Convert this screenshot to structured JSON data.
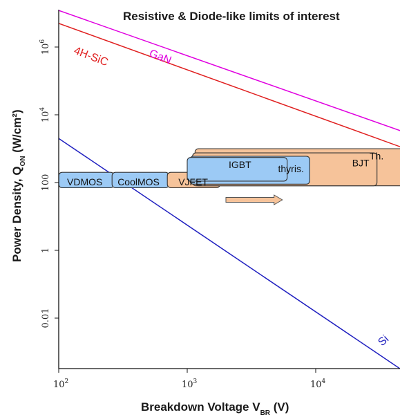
{
  "chart_data": {
    "type": "line",
    "title": "Resistive & Diode-like limits of interest",
    "xlabel": {
      "main": "Breakdown Voltage V",
      "sub": "BR",
      "unit": " (V)"
    },
    "ylabel": {
      "main": "Power Density, Q",
      "sub": "ON",
      "unit": " (W/cm²)"
    },
    "xscale": "log",
    "yscale": "log",
    "xlim": [
      100,
      50000
    ],
    "ylim": [
      3e-05,
      30000000
    ],
    "x_ticks": [
      {
        "base": "10",
        "exp": "2",
        "value": 100
      },
      {
        "base": "10",
        "exp": "3",
        "value": 1000
      },
      {
        "base": "10",
        "exp": "4",
        "value": 10000
      }
    ],
    "y_ticks": [
      {
        "label": "0.01",
        "value": 0.01
      },
      {
        "label": "1",
        "value": 1
      },
      {
        "label": "100",
        "value": 100
      },
      {
        "base": "10",
        "exp": "4",
        "value": 10000
      },
      {
        "base": "10",
        "exp": "6",
        "value": 1000000
      }
    ],
    "series": [
      {
        "name": "GaN",
        "color": "#e000e0",
        "x": [
          100,
          50000
        ],
        "y": [
          12000000,
          3000
        ]
      },
      {
        "name": "4H-SiC",
        "color": "#e02020",
        "x": [
          100,
          50000
        ],
        "y": [
          5000000,
          1000
        ]
      },
      {
        "name": "Si",
        "color": "#2020c0",
        "x": [
          100,
          50000
        ],
        "y": [
          2000,
          0.00025
        ]
      }
    ],
    "devices": [
      {
        "label": "VDMOS",
        "color": "#9ccaf5",
        "v_min": 100,
        "v_max": 270,
        "q_min": 70,
        "q_max": 200
      },
      {
        "label": "CoolMOS",
        "color": "#9ccaf5",
        "v_min": 260,
        "v_max": 720,
        "q_min": 70,
        "q_max": 200
      },
      {
        "label": "VJFET",
        "color": "#f6c39a",
        "v_min": 700,
        "v_max": 1800,
        "q_min": 70,
        "q_max": 200
      },
      {
        "label": "Th.",
        "color": "#f6c39a",
        "v_min": 1150,
        "v_max": 50000,
        "q_min": 80,
        "q_max": 1000
      },
      {
        "label": "BJT",
        "color": "#f6c39a",
        "v_min": 1100,
        "v_max": 30000,
        "q_min": 80,
        "q_max": 750
      },
      {
        "label": "thyris.",
        "color": "#9ccaf5",
        "v_min": 1050,
        "v_max": 9000,
        "q_min": 90,
        "q_max": 600
      },
      {
        "label": "IGBT",
        "color": "#9ccaf5",
        "v_min": 1000,
        "v_max": 6000,
        "q_min": 110,
        "q_max": 550
      }
    ],
    "arrow": {
      "direction": "right",
      "color": "#f6c39a",
      "x_from": 2000,
      "x_to": 5500,
      "y": 10
    }
  }
}
